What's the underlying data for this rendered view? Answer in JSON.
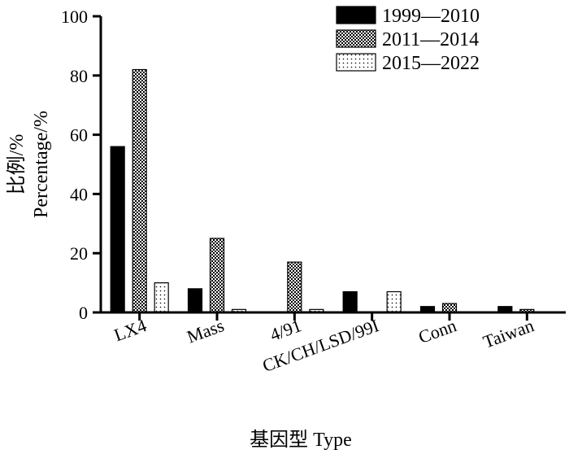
{
  "chart_data": {
    "type": "bar",
    "title": "",
    "ylabel_cn": "比例/%",
    "ylabel_en": "Percentage/%",
    "xlabel": "基因型 Type",
    "categories": [
      "LX4",
      "Mass",
      "4/91",
      "CK/CH/LSD/99I",
      "Conn",
      "Taiwan"
    ],
    "series": [
      {
        "name": "1999—2010",
        "pattern": "solid",
        "values": [
          56,
          8,
          0,
          7,
          2,
          2
        ]
      },
      {
        "name": "2011—2014",
        "pattern": "checker",
        "values": [
          82,
          25,
          17,
          0,
          3,
          1
        ]
      },
      {
        "name": "2015—2022",
        "pattern": "dots",
        "values": [
          10,
          1,
          1,
          7,
          0,
          0
        ]
      }
    ],
    "ylim": [
      0,
      100
    ],
    "yticks": [
      0,
      20,
      40,
      60,
      80,
      100
    ],
    "grid": false,
    "legend_position": "top-right",
    "colors": {
      "bar_fill": "#000000",
      "bar_stroke": "#000000",
      "background": "#ffffff"
    }
  }
}
